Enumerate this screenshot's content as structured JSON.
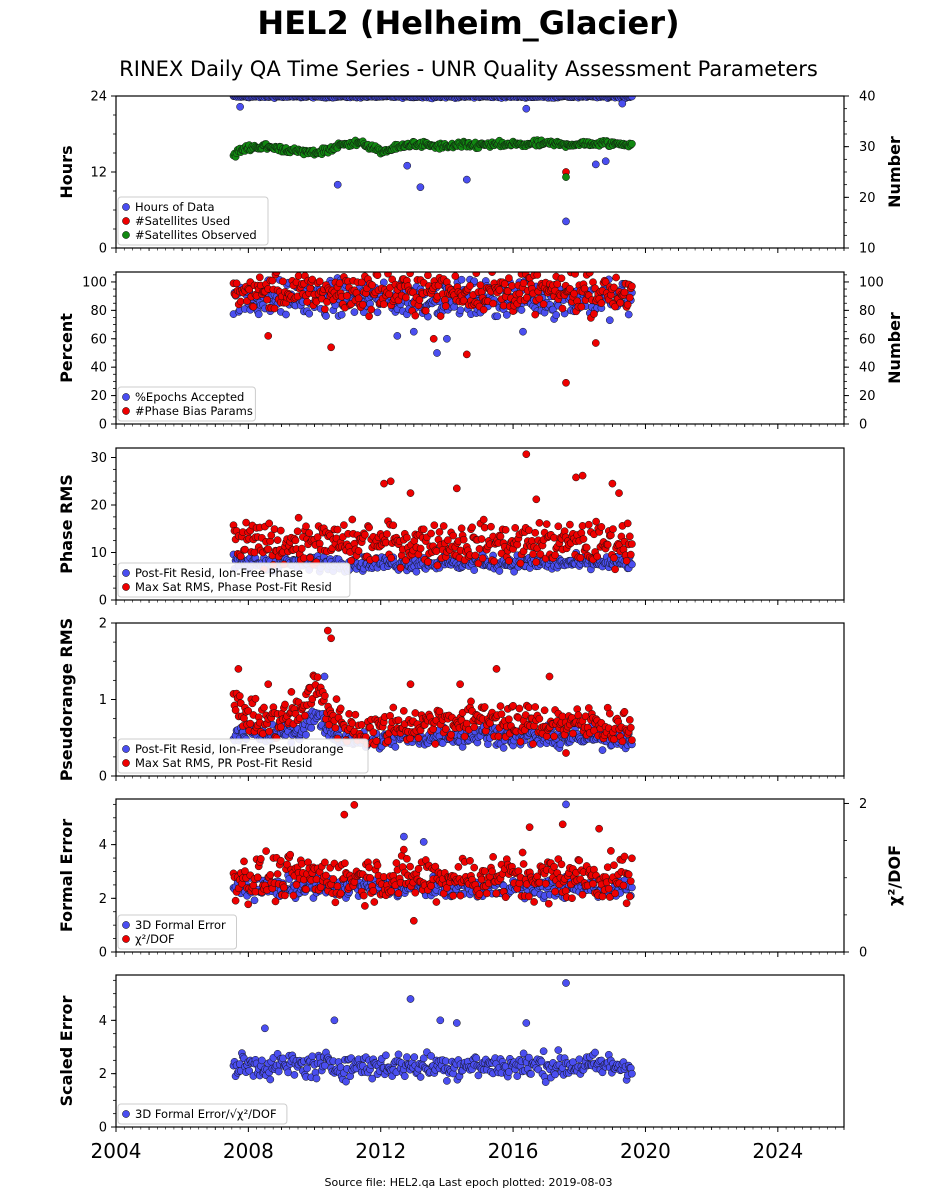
{
  "title": "HEL2 (Helheim_Glacier)",
  "subtitle": "RINEX Daily QA Time Series - UNR Quality Assessment Parameters",
  "footer": "Source file: HEL2.qa Last epoch plotted: 2019-08-03",
  "colors": {
    "blue": "#4a4ef0",
    "red": "#ee0000",
    "green": "#118811"
  },
  "chart_data": [
    {
      "type": "scatter",
      "ylabel": "Hours",
      "ylabel_right": "Number",
      "ylim": [
        0,
        24
      ],
      "yticks": [
        "0",
        "12",
        "24"
      ],
      "ylim_right": [
        10,
        40
      ],
      "yticks_right": [
        "10",
        "20",
        "30",
        "40"
      ],
      "legend": [
        "Hours of Data",
        "#Satellites Used",
        "#Satellites Observed"
      ],
      "legend_placement": "lower-left",
      "series": [
        {
          "name": "Hours of Data",
          "color": "blue",
          "axis": "left",
          "kind": "band",
          "base": 23.9,
          "spread": 0.15,
          "x_range": [
            2007.55,
            2019.59
          ],
          "outliers": [
            [
              2007.75,
              22.3
            ],
            [
              2010.7,
              10.0
            ],
            [
              2012.8,
              13.0
            ],
            [
              2013.2,
              9.6
            ],
            [
              2014.6,
              10.8
            ],
            [
              2016.4,
              22.0
            ],
            [
              2017.6,
              4.2
            ],
            [
              2018.5,
              13.2
            ],
            [
              2018.8,
              13.7
            ],
            [
              2019.3,
              22.8
            ]
          ]
        },
        {
          "name": "#Satellites Used",
          "color": "red",
          "axis": "right",
          "kind": "outliers",
          "outliers": [
            [
              2017.6,
              25.0
            ]
          ]
        },
        {
          "name": "#Satellites Observed",
          "color": "green",
          "axis": "right",
          "x": [
            2007.55,
            2008.0,
            2008.5,
            2009.0,
            2009.5,
            2010.0,
            2010.5,
            2011.0,
            2011.5,
            2012.0,
            2012.5,
            2013.0,
            2013.5,
            2014.0,
            2014.5,
            2015.0,
            2015.5,
            2016.0,
            2016.5,
            2017.0,
            2017.5,
            2018.0,
            2018.5,
            2019.0,
            2019.59
          ],
          "values": [
            28.5,
            29.8,
            30.0,
            29.6,
            29.0,
            28.8,
            29.5,
            30.8,
            30.5,
            29.0,
            29.8,
            30.6,
            30.2,
            30.0,
            30.3,
            30.3,
            30.4,
            30.4,
            30.5,
            30.6,
            30.5,
            30.5,
            30.6,
            30.6,
            30.5
          ],
          "spread": 0.5,
          "outliers": [
            [
              2017.6,
              24.0
            ]
          ]
        }
      ]
    },
    {
      "type": "scatter",
      "ylabel": "Percent",
      "ylabel_right": "Number",
      "ylim": [
        0,
        107
      ],
      "yticks": [
        "0",
        "20",
        "40",
        "60",
        "80",
        "100"
      ],
      "ylim_right": [
        0,
        107
      ],
      "yticks_right": [
        "0",
        "20",
        "40",
        "60",
        "80",
        "100"
      ],
      "legend": [
        "%Epochs Accepted",
        "#Phase Bias Params"
      ],
      "legend_placement": "lower-left",
      "series": [
        {
          "name": "%Epochs Accepted",
          "color": "blue",
          "axis": "left",
          "kind": "band",
          "base": 88,
          "spread": 10,
          "x_range": [
            2007.55,
            2019.59
          ],
          "outliers": [
            [
              2012.5,
              62
            ],
            [
              2013.0,
              65
            ],
            [
              2013.7,
              50
            ],
            [
              2014.0,
              60
            ],
            [
              2016.3,
              65
            ]
          ]
        },
        {
          "name": "#Phase Bias Params",
          "color": "red",
          "axis": "right",
          "kind": "band",
          "base": 93,
          "spread": 11,
          "x_range": [
            2007.55,
            2019.59
          ],
          "outliers": [
            [
              2008.6,
              62
            ],
            [
              2010.5,
              54
            ],
            [
              2013.6,
              60
            ],
            [
              2014.6,
              49
            ],
            [
              2017.6,
              29
            ],
            [
              2018.5,
              57
            ]
          ]
        }
      ]
    },
    {
      "type": "scatter",
      "ylabel": "Phase RMS",
      "ylim": [
        0,
        32
      ],
      "yticks": [
        "0",
        "10",
        "20",
        "30"
      ],
      "legend": [
        "Post-Fit Resid, Ion-Free Phase",
        "Max Sat RMS, Phase Post-Fit Resid"
      ],
      "legend_placement": "lower-left",
      "series": [
        {
          "name": "Post-Fit Resid, Ion-Free Phase",
          "color": "blue",
          "axis": "left",
          "kind": "band",
          "base": 7.8,
          "spread": 1.3,
          "x_range": [
            2007.55,
            2019.59
          ],
          "outliers": []
        },
        {
          "name": "Max Sat RMS, Phase Post-Fit Resid",
          "color": "red",
          "axis": "left",
          "kind": "band",
          "base": 12.0,
          "spread": 3.5,
          "x_range": [
            2007.55,
            2019.59
          ],
          "outliers": [
            [
              2012.1,
              24.5
            ],
            [
              2012.3,
              25.0
            ],
            [
              2012.9,
              22.5
            ],
            [
              2014.3,
              23.5
            ],
            [
              2016.4,
              30.7
            ],
            [
              2016.7,
              21.2
            ],
            [
              2017.9,
              25.8
            ],
            [
              2018.1,
              26.2
            ],
            [
              2019.0,
              24.5
            ],
            [
              2019.2,
              22.5
            ]
          ]
        }
      ]
    },
    {
      "type": "scatter",
      "ylabel": "Pseudorange RMS",
      "ylim": [
        0,
        2
      ],
      "yticks": [
        "0",
        "1",
        "2"
      ],
      "legend": [
        "Post-Fit Resid, Ion-Free Pseudorange",
        "Max Sat RMS, PR Post-Fit Resid"
      ],
      "legend_placement": "lower-left",
      "series": [
        {
          "name": "Post-Fit Resid, Ion-Free Pseudorange",
          "color": "blue",
          "axis": "left",
          "x": [
            2007.55,
            2008.0,
            2008.5,
            2009.0,
            2009.5,
            2010.0,
            2010.5,
            2011.0,
            2011.5,
            2012.0,
            2012.5,
            2013.0,
            2013.5,
            2014.0,
            2014.5,
            2015.0,
            2015.5,
            2016.0,
            2016.5,
            2017.0,
            2017.5,
            2018.0,
            2018.5,
            2019.0,
            2019.59
          ],
          "values": [
            0.55,
            0.6,
            0.5,
            0.6,
            0.55,
            0.8,
            0.55,
            0.5,
            0.45,
            0.45,
            0.5,
            0.5,
            0.5,
            0.55,
            0.5,
            0.55,
            0.55,
            0.5,
            0.5,
            0.5,
            0.5,
            0.5,
            0.5,
            0.5,
            0.5
          ],
          "spread": 0.1,
          "outliers": [
            [
              2010.3,
              1.3
            ]
          ]
        },
        {
          "name": "Max Sat RMS, PR Post-Fit Resid",
          "color": "red",
          "axis": "left",
          "x": [
            2007.55,
            2008.0,
            2008.5,
            2009.0,
            2009.5,
            2010.0,
            2010.5,
            2011.0,
            2011.5,
            2012.0,
            2012.5,
            2013.0,
            2013.5,
            2014.0,
            2014.5,
            2015.0,
            2015.5,
            2016.0,
            2016.5,
            2017.0,
            2017.5,
            2018.0,
            2018.5,
            2019.0,
            2019.59
          ],
          "values": [
            0.9,
            0.8,
            0.7,
            0.75,
            0.8,
            1.2,
            0.8,
            0.65,
            0.6,
            0.6,
            0.7,
            0.65,
            0.7,
            0.75,
            0.65,
            0.8,
            0.75,
            0.65,
            0.7,
            0.7,
            0.7,
            0.65,
            0.7,
            0.65,
            0.65
          ],
          "spread": 0.2,
          "outliers": [
            [
              2007.7,
              1.4
            ],
            [
              2008.6,
              1.2
            ],
            [
              2009.3,
              1.1
            ],
            [
              2010.4,
              1.9
            ],
            [
              2010.5,
              1.8
            ],
            [
              2012.9,
              1.2
            ],
            [
              2014.4,
              1.2
            ],
            [
              2015.5,
              1.4
            ],
            [
              2017.1,
              1.3
            ],
            [
              2017.6,
              0.3
            ]
          ]
        }
      ]
    },
    {
      "type": "scatter",
      "ylabel": "Formal Error",
      "ylabel_right": "χ²/DOF",
      "ylim": [
        0,
        5.7
      ],
      "yticks": [
        "0",
        "2",
        "4"
      ],
      "ylim_right": [
        0,
        2.06
      ],
      "yticks_right": [
        "0",
        "2"
      ],
      "legend": [
        "3D Formal Error",
        "χ²/DOF"
      ],
      "legend_placement": "lower-left",
      "series": [
        {
          "name": "3D Formal Error",
          "color": "blue",
          "axis": "left",
          "kind": "band",
          "base": 2.4,
          "spread": 0.3,
          "x_range": [
            2007.55,
            2019.59
          ],
          "outliers": [
            [
              2012.7,
              4.3
            ],
            [
              2013.3,
              4.1
            ],
            [
              2017.6,
              5.5
            ]
          ]
        },
        {
          "name": "χ²/DOF",
          "color": "red",
          "axis": "right",
          "kind": "band",
          "base": 1.0,
          "spread": 0.25,
          "x_range": [
            2007.55,
            2019.59
          ],
          "outliers": [
            [
              2010.9,
              1.85
            ],
            [
              2011.2,
              1.98
            ],
            [
              2013.0,
              0.42
            ],
            [
              2016.5,
              1.68
            ],
            [
              2017.5,
              1.72
            ],
            [
              2018.6,
              1.66
            ]
          ]
        }
      ]
    },
    {
      "type": "scatter",
      "ylabel": "Scaled Error",
      "ylim": [
        0,
        5.7
      ],
      "yticks": [
        "0",
        "2",
        "4"
      ],
      "legend": [
        "3D Formal Error/√χ²/DOF"
      ],
      "legend_placement": "lower-left",
      "series": [
        {
          "name": "3D Formal Error/√χ²/DOF",
          "color": "blue",
          "axis": "left",
          "kind": "band",
          "base": 2.3,
          "spread": 0.4,
          "x_range": [
            2007.55,
            2019.59
          ],
          "outliers": [
            [
              2008.5,
              3.7
            ],
            [
              2010.6,
              4.0
            ],
            [
              2012.9,
              4.8
            ],
            [
              2013.8,
              4.0
            ],
            [
              2014.3,
              3.9
            ],
            [
              2016.4,
              3.9
            ],
            [
              2017.6,
              5.4
            ]
          ]
        }
      ]
    }
  ],
  "x_axis": {
    "xlim": [
      2004,
      2026
    ],
    "ticks": [
      "2004",
      "2008",
      "2012",
      "2016",
      "2020",
      "2024"
    ]
  }
}
